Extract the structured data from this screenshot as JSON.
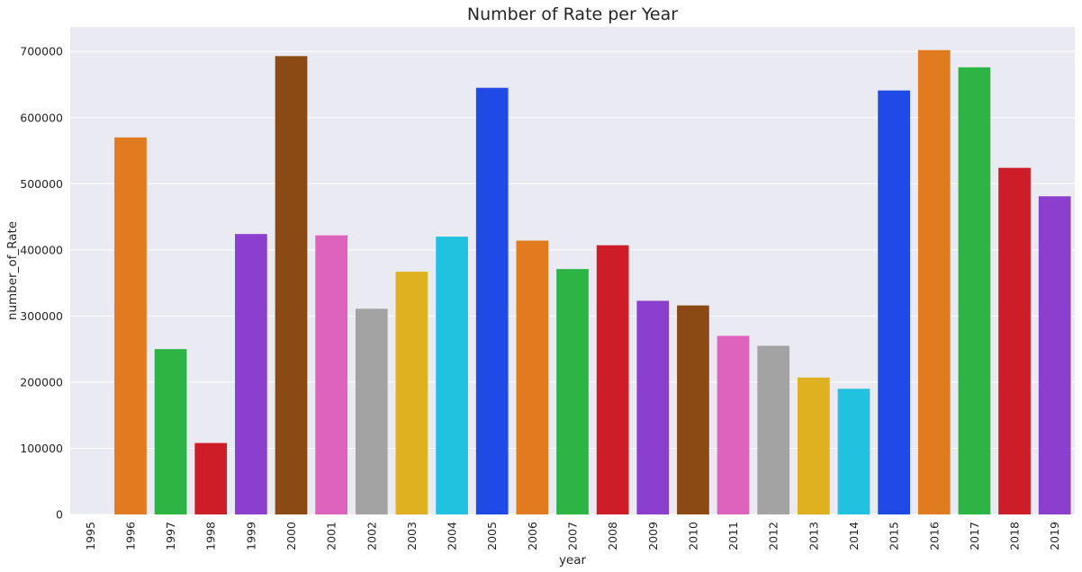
{
  "chart_data": {
    "type": "bar",
    "title": "Number of Rate per Year",
    "xlabel": "year",
    "ylabel": "number_of_Rate",
    "categories": [
      "1995",
      "1996",
      "1997",
      "1998",
      "1999",
      "2000",
      "2001",
      "2002",
      "2003",
      "2004",
      "2005",
      "2006",
      "2007",
      "2008",
      "2009",
      "2010",
      "2011",
      "2012",
      "2013",
      "2014",
      "2015",
      "2016",
      "2017",
      "2018",
      "2019"
    ],
    "values": [
      0,
      570000,
      250000,
      108000,
      424000,
      693000,
      422000,
      311000,
      367000,
      420000,
      645000,
      414000,
      371000,
      407000,
      323000,
      316000,
      270000,
      255000,
      207000,
      190000,
      641000,
      702000,
      676000,
      524000,
      481000
    ],
    "yticks": [
      0,
      100000,
      200000,
      300000,
      400000,
      500000,
      600000,
      700000
    ],
    "ytick_labels": [
      "0",
      "100000",
      "200000",
      "300000",
      "400000",
      "500000",
      "600000",
      "700000"
    ],
    "ylim": [
      0,
      737000
    ],
    "grid": true,
    "legend": "none",
    "colors": [
      "#1f4ae6",
      "#e07b1f",
      "#2cb444",
      "#cc1d28",
      "#8b3fcc",
      "#8b4a13",
      "#de63bd",
      "#a3a3a3",
      "#dfb01f",
      "#20c2e0"
    ],
    "background": "#eaeaf2",
    "gridline_color": "#ffffff"
  }
}
